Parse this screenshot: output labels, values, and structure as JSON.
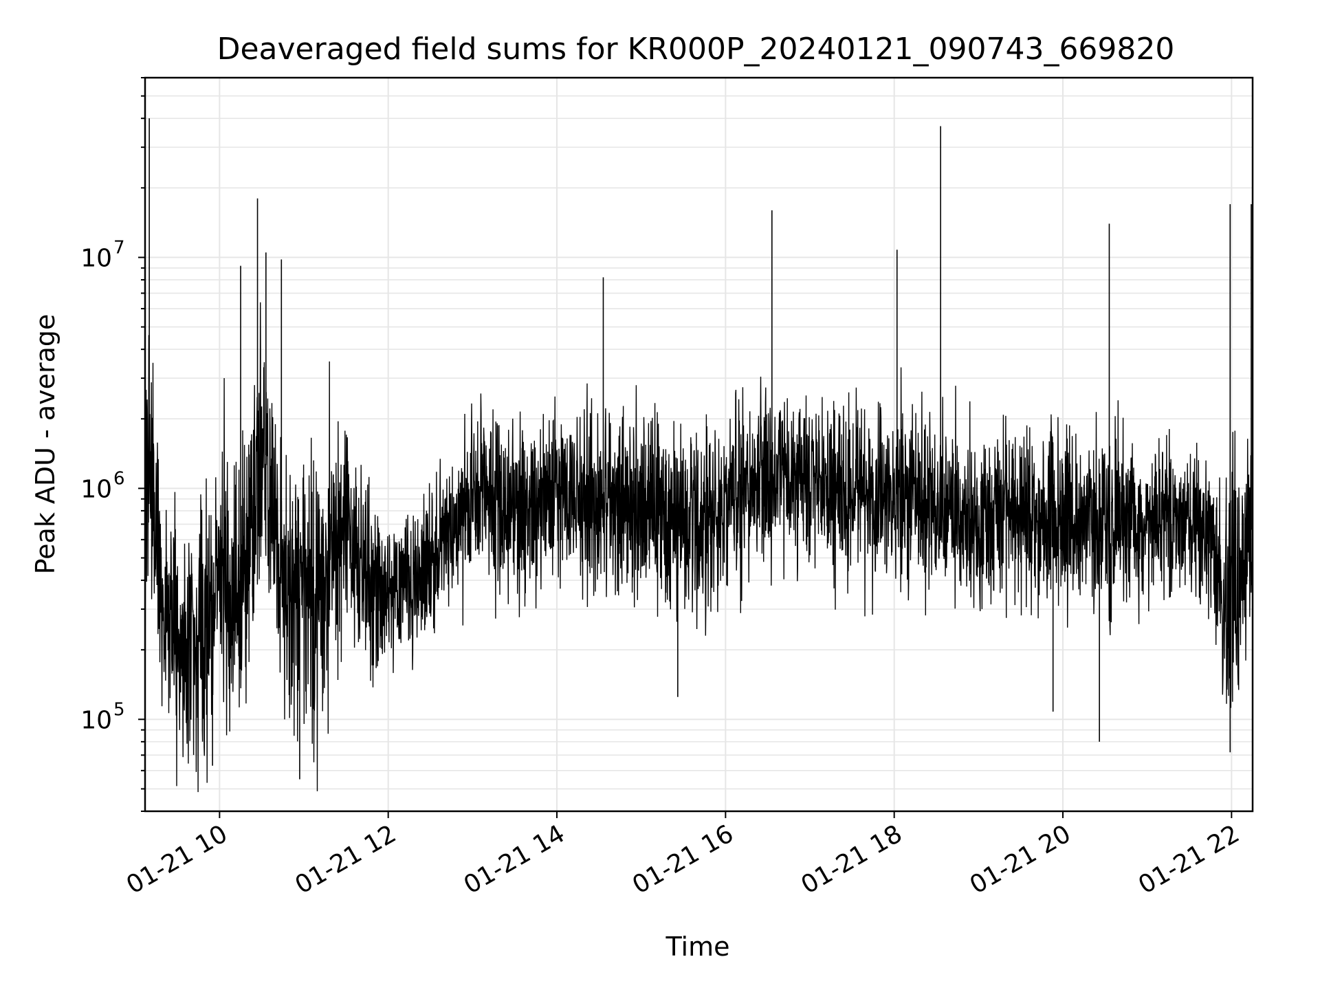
{
  "chart_data": {
    "type": "line",
    "title": "Deaveraged field sums for KR000P_20240121_090743_669820",
    "xlabel": "Time",
    "ylabel": "Peak ADU - average",
    "y_scale": "log",
    "ylim": [
      40000,
      60000000
    ],
    "xlim": [
      "2024-01-21 09:07",
      "2024-01-21 22:15"
    ],
    "grid": true,
    "line_color": "#000000",
    "x_ticks": [
      "2024-01-21 10:00",
      "2024-01-21 12:00",
      "2024-01-21 14:00",
      "2024-01-21 16:00",
      "2024-01-21 18:00",
      "2024-01-21 20:00",
      "2024-01-21 22:00"
    ],
    "x_tick_labels": [
      "01-21 10",
      "01-21 12",
      "01-21 14",
      "01-21 16",
      "01-21 18",
      "01-21 20",
      "01-21 22"
    ],
    "y_ticks": [
      100000,
      1000000,
      10000000
    ],
    "y_tick_labels": [
      {
        "base": "10",
        "exp": "5"
      },
      {
        "base": "10",
        "exp": "6"
      },
      {
        "base": "10",
        "exp": "7"
      }
    ],
    "series": [
      {
        "x": [
          "2024-01-21 09:07",
          "2024-01-21 09:10",
          "2024-01-21 09:15",
          "2024-01-21 09:20",
          "2024-01-21 09:30",
          "2024-01-21 09:40",
          "2024-01-21 09:50",
          "2024-01-21 10:00",
          "2024-01-21 10:10",
          "2024-01-21 10:20",
          "2024-01-21 10:30",
          "2024-01-21 10:40",
          "2024-01-21 10:50",
          "2024-01-21 11:00",
          "2024-01-21 11:10",
          "2024-01-21 11:20",
          "2024-01-21 11:30",
          "2024-01-21 11:40",
          "2024-01-21 11:50",
          "2024-01-21 12:00",
          "2024-01-21 12:15",
          "2024-01-21 12:30",
          "2024-01-21 12:45",
          "2024-01-21 13:00",
          "2024-01-21 13:15",
          "2024-01-21 13:30",
          "2024-01-21 13:45",
          "2024-01-21 14:00",
          "2024-01-21 14:15",
          "2024-01-21 14:30",
          "2024-01-21 14:45",
          "2024-01-21 15:00",
          "2024-01-21 15:15",
          "2024-01-21 15:30",
          "2024-01-21 15:45",
          "2024-01-21 16:00",
          "2024-01-21 16:15",
          "2024-01-21 16:30",
          "2024-01-21 16:45",
          "2024-01-21 17:00",
          "2024-01-21 17:15",
          "2024-01-21 17:30",
          "2024-01-21 17:45",
          "2024-01-21 18:00",
          "2024-01-21 18:15",
          "2024-01-21 18:30",
          "2024-01-21 18:45",
          "2024-01-21 19:00",
          "2024-01-21 19:15",
          "2024-01-21 19:30",
          "2024-01-21 19:45",
          "2024-01-21 20:00",
          "2024-01-21 20:15",
          "2024-01-21 20:30",
          "2024-01-21 20:45",
          "2024-01-21 21:00",
          "2024-01-21 21:15",
          "2024-01-21 21:30",
          "2024-01-21 21:45",
          "2024-01-21 21:55",
          "2024-01-21 22:05",
          "2024-01-21 22:15"
        ],
        "base": [
          1000000,
          1200000,
          700000,
          300000,
          220000,
          200000,
          240000,
          500000,
          350000,
          450000,
          2000000,
          600000,
          300000,
          350000,
          400000,
          600000,
          700000,
          450000,
          380000,
          350000,
          400000,
          450000,
          600000,
          1000000,
          900000,
          800000,
          850000,
          900000,
          950000,
          900000,
          850000,
          800000,
          750000,
          700000,
          700000,
          900000,
          1000000,
          1100000,
          1100000,
          1100000,
          1050000,
          1000000,
          950000,
          950000,
          900000,
          850000,
          750000,
          700000,
          750000,
          850000,
          800000,
          750000,
          700000,
          750000,
          700000,
          750000,
          750000,
          700000,
          650000,
          300000,
          400000,
          700000
        ],
        "spread": [
          0.55,
          0.5,
          0.45,
          0.45,
          0.45,
          0.48,
          0.5,
          0.55,
          0.55,
          0.55,
          0.5,
          0.55,
          0.6,
          0.6,
          0.6,
          0.55,
          0.5,
          0.4,
          0.35,
          0.3,
          0.3,
          0.3,
          0.3,
          0.35,
          0.35,
          0.35,
          0.35,
          0.35,
          0.35,
          0.35,
          0.35,
          0.35,
          0.38,
          0.4,
          0.4,
          0.35,
          0.35,
          0.35,
          0.35,
          0.35,
          0.35,
          0.35,
          0.35,
          0.35,
          0.35,
          0.35,
          0.35,
          0.32,
          0.32,
          0.32,
          0.35,
          0.35,
          0.35,
          0.35,
          0.35,
          0.3,
          0.3,
          0.3,
          0.3,
          0.5,
          0.5,
          0.4
        ]
      }
    ],
    "spikes": [
      {
        "x": "2024-01-21 09:10",
        "y": 40000000
      },
      {
        "x": "2024-01-21 10:27",
        "y": 18000000
      },
      {
        "x": "2024-01-21 10:15",
        "y": 9200000
      },
      {
        "x": "2024-01-21 10:33",
        "y": 10500000
      },
      {
        "x": "2024-01-21 10:44",
        "y": 9800000
      },
      {
        "x": "2024-01-21 14:33",
        "y": 8200000
      },
      {
        "x": "2024-01-21 16:33",
        "y": 16000000
      },
      {
        "x": "2024-01-21 18:02",
        "y": 10800000
      },
      {
        "x": "2024-01-21 18:33",
        "y": 37000000
      },
      {
        "x": "2024-01-21 20:33",
        "y": 14000000
      },
      {
        "x": "2024-01-21 21:59",
        "y": 17000000
      },
      {
        "x": "2024-01-21 22:14",
        "y": 17000000
      }
    ],
    "dips": [
      {
        "x": "2024-01-21 10:57",
        "y": 55000
      },
      {
        "x": "2024-01-21 09:55",
        "y": 63000
      },
      {
        "x": "2024-01-21 19:53",
        "y": 108000
      },
      {
        "x": "2024-01-21 20:26",
        "y": 80000
      },
      {
        "x": "2024-01-21 21:59",
        "y": 72000
      },
      {
        "x": "2024-01-21 15:26",
        "y": 125000
      }
    ]
  }
}
